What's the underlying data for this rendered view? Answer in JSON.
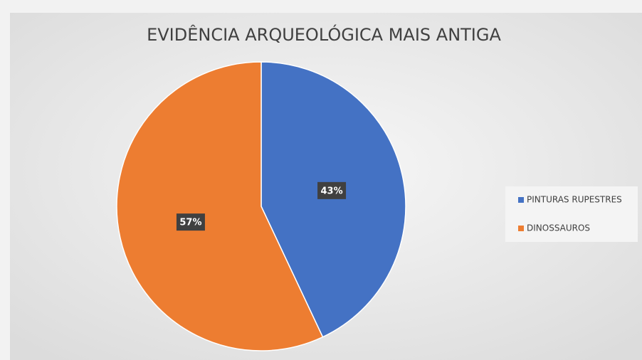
{
  "chart_data": {
    "type": "pie",
    "title": "EVIDÊNCIA ARQUEOLÓGICA MAIS ANTIGA",
    "categories": [
      "PINTURAS RUPESTRES",
      "DINOSSAUROS"
    ],
    "values": [
      43,
      57
    ],
    "value_labels": [
      "43%",
      "57%"
    ],
    "colors": [
      "#4472c4",
      "#ed7d31"
    ],
    "legend": "right"
  }
}
